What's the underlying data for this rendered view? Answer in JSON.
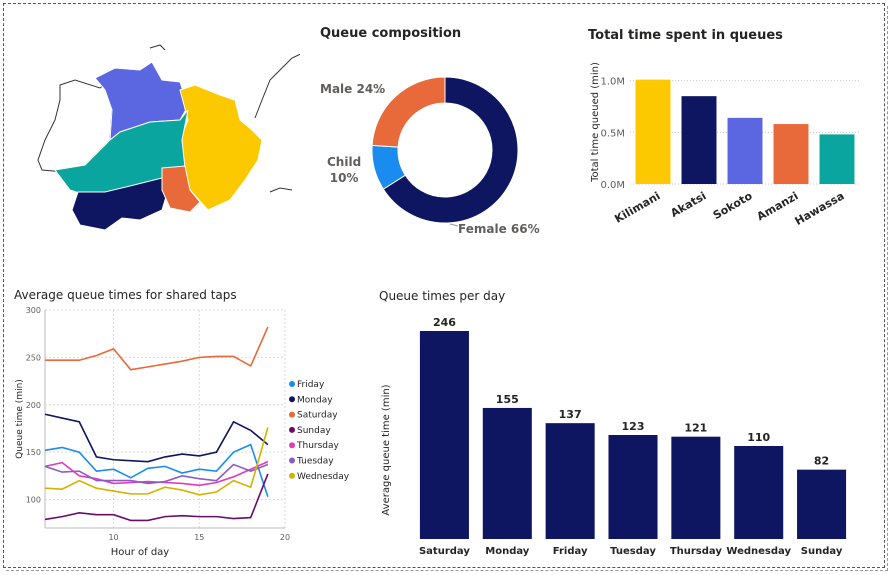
{
  "colors": {
    "navy": "#0e1561",
    "blue": "#5b67e0",
    "yellow": "#fcc800",
    "teal": "#0ba5a0",
    "orange": "#e8693a",
    "sky": "#1a8cf0",
    "purple": "#6a0c6a",
    "pink": "#e03ac0",
    "violet": "#8a5cc8",
    "gold": "#d4b200"
  },
  "map": {
    "regions": [
      {
        "name": "white-region",
        "color": "#ffffff"
      },
      {
        "name": "blue-region",
        "color": "#5b67e0"
      },
      {
        "name": "yellow-region",
        "color": "#fcc800"
      },
      {
        "name": "teal-region",
        "color": "#0ba5a0"
      },
      {
        "name": "navy-region",
        "color": "#0e1561"
      },
      {
        "name": "orange-region",
        "color": "#e8693a"
      }
    ]
  },
  "chart_data": [
    {
      "id": "composition",
      "type": "pie",
      "title": "Queue composition",
      "slices": [
        {
          "label": "Female",
          "value": 66,
          "text": "Female 66%",
          "color": "#0e1561"
        },
        {
          "label": "Child",
          "value": 10,
          "text_line1": "Child",
          "text_line2": "10%",
          "color": "#1a8cf0"
        },
        {
          "label": "Male",
          "value": 24,
          "text": "Male 24%",
          "color": "#e8693a"
        }
      ]
    },
    {
      "id": "total_time",
      "type": "bar",
      "title": "Total time spent in queues",
      "ylabel": "Total time queued (min)",
      "categories": [
        "Kilimani",
        "Akatsi",
        "Sokoto",
        "Amanzi",
        "Hawassa"
      ],
      "values": [
        1010000,
        850000,
        640000,
        580000,
        480000
      ],
      "colors": [
        "#fcc800",
        "#0e1561",
        "#5b67e0",
        "#e8693a",
        "#0ba5a0"
      ],
      "ylim": [
        0,
        1200000
      ],
      "yticks": [
        {
          "v": 0,
          "label": "0.0M"
        },
        {
          "v": 500000,
          "label": "0.5M"
        },
        {
          "v": 1000000,
          "label": "1.0M"
        }
      ],
      "grid": true
    },
    {
      "id": "shared_taps",
      "type": "line",
      "title": "Average queue times for shared taps",
      "xlabel": "Hour of day",
      "ylabel": "Queue time (min)",
      "xlim": [
        6,
        20
      ],
      "ylim": [
        70,
        300
      ],
      "xticks": [
        10,
        15,
        20
      ],
      "yticks": [
        100,
        150,
        200,
        250,
        300
      ],
      "x": [
        6,
        7,
        8,
        9,
        10,
        11,
        12,
        13,
        14,
        15,
        16,
        17,
        18,
        19
      ],
      "legend_position": "right",
      "series": [
        {
          "name": "Friday",
          "color": "#1a8cf0",
          "values": [
            152,
            155,
            150,
            130,
            132,
            123,
            133,
            135,
            128,
            132,
            130,
            150,
            158,
            103
          ]
        },
        {
          "name": "Monday",
          "color": "#0e1561",
          "values": [
            190,
            186,
            182,
            145,
            142,
            141,
            140,
            145,
            148,
            146,
            150,
            182,
            173,
            158
          ]
        },
        {
          "name": "Saturday",
          "color": "#e8693a",
          "values": [
            247,
            247,
            247,
            252,
            259,
            237,
            240,
            243,
            246,
            250,
            251,
            251,
            241,
            282
          ]
        },
        {
          "name": "Sunday",
          "color": "#6a0c6a",
          "values": [
            79,
            82,
            86,
            84,
            84,
            78,
            78,
            82,
            83,
            82,
            82,
            80,
            81,
            127
          ]
        },
        {
          "name": "Thursday",
          "color": "#e03ac0",
          "values": [
            135,
            139,
            125,
            122,
            117,
            118,
            119,
            118,
            117,
            115,
            118,
            124,
            132,
            140
          ]
        },
        {
          "name": "Tuesday",
          "color": "#8a5cc8",
          "values": [
            135,
            129,
            130,
            120,
            120,
            120,
            117,
            119,
            125,
            122,
            120,
            137,
            130,
            137
          ]
        },
        {
          "name": "Wednesday",
          "color": "#d4b200",
          "values": [
            112,
            111,
            120,
            112,
            109,
            106,
            106,
            113,
            110,
            105,
            108,
            120,
            113,
            176
          ]
        }
      ],
      "grid": true
    },
    {
      "id": "per_day",
      "type": "bar",
      "title": "Queue times per day",
      "ylabel": "Average queue time (min)",
      "categories": [
        "Saturday",
        "Monday",
        "Friday",
        "Tuesday",
        "Thursday",
        "Wednesday",
        "Sunday"
      ],
      "values": [
        246,
        155,
        137,
        123,
        121,
        110,
        82
      ],
      "data_labels": [
        "246",
        "155",
        "137",
        "123",
        "121",
        "110",
        "82"
      ],
      "color": "#0e1561",
      "ylim": [
        0,
        246
      ]
    }
  ]
}
